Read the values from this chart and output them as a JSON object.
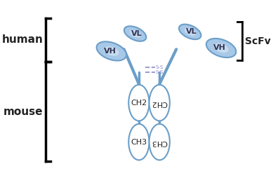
{
  "bg_color": "#ffffff",
  "ab_blue": "#6b9ec8",
  "ab_blue_fill": "#a8c8e8",
  "ab_blue_light": "#ddeef9",
  "text_color": "#222222",
  "ss_color": "#8888cc",
  "label_human": "human",
  "label_mouse": "mouse",
  "label_scfv": "ScFv",
  "label_vh": "VH",
  "label_vl": "VL",
  "label_ch2": "CH2",
  "label_ch3": "CH3"
}
